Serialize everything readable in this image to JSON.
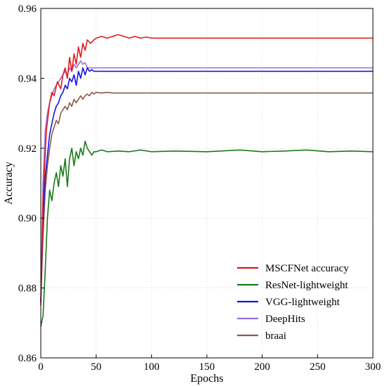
{
  "chart_data": {
    "type": "line",
    "title": "",
    "xlabel": "Epochs",
    "ylabel": "Accuracy",
    "xlim": [
      0,
      300
    ],
    "ylim": [
      0.86,
      0.96
    ],
    "xticks": [
      0,
      50,
      100,
      150,
      200,
      250,
      300
    ],
    "yticks": [
      0.86,
      0.88,
      0.9,
      0.92,
      0.94,
      0.96
    ],
    "ytick_labels": [
      "0.86",
      "0.88",
      "0.90",
      "0.92",
      "0.94",
      "0.96"
    ],
    "grid": true,
    "legend_position": "bottom-right",
    "series": [
      {
        "name": "MSCFNet accuracy",
        "color": "#e41a1c",
        "points": [
          [
            0,
            0.875
          ],
          [
            2,
            0.905
          ],
          [
            5,
            0.925
          ],
          [
            8,
            0.933
          ],
          [
            10,
            0.936
          ],
          [
            12,
            0.935
          ],
          [
            15,
            0.939
          ],
          [
            18,
            0.937
          ],
          [
            20,
            0.941
          ],
          [
            22,
            0.943
          ],
          [
            24,
            0.94
          ],
          [
            26,
            0.946
          ],
          [
            28,
            0.942
          ],
          [
            30,
            0.947
          ],
          [
            32,
            0.944
          ],
          [
            34,
            0.949
          ],
          [
            36,
            0.946
          ],
          [
            38,
            0.95
          ],
          [
            40,
            0.948
          ],
          [
            42,
            0.951
          ],
          [
            45,
            0.95
          ],
          [
            48,
            0.951
          ],
          [
            50,
            0.9515
          ],
          [
            55,
            0.952
          ],
          [
            60,
            0.9515
          ],
          [
            65,
            0.952
          ],
          [
            70,
            0.9525
          ],
          [
            75,
            0.952
          ],
          [
            80,
            0.9515
          ],
          [
            85,
            0.952
          ],
          [
            90,
            0.9515
          ],
          [
            95,
            0.9518
          ],
          [
            100,
            0.9515
          ],
          [
            110,
            0.9515
          ],
          [
            150,
            0.9515
          ],
          [
            200,
            0.9515
          ],
          [
            250,
            0.9515
          ],
          [
            300,
            0.9515
          ]
        ]
      },
      {
        "name": "ResNet-lightweight",
        "color": "#1a7a1a",
        "points": [
          [
            0,
            0.869
          ],
          [
            2,
            0.872
          ],
          [
            4,
            0.885
          ],
          [
            6,
            0.9
          ],
          [
            8,
            0.908
          ],
          [
            10,
            0.905
          ],
          [
            12,
            0.91
          ],
          [
            14,
            0.913
          ],
          [
            16,
            0.909
          ],
          [
            18,
            0.915
          ],
          [
            20,
            0.912
          ],
          [
            22,
            0.917
          ],
          [
            24,
            0.909
          ],
          [
            26,
            0.917
          ],
          [
            28,
            0.92
          ],
          [
            30,
            0.915
          ],
          [
            32,
            0.919
          ],
          [
            34,
            0.917
          ],
          [
            36,
            0.92
          ],
          [
            38,
            0.918
          ],
          [
            40,
            0.922
          ],
          [
            42,
            0.92
          ],
          [
            44,
            0.919
          ],
          [
            46,
            0.918
          ],
          [
            48,
            0.919
          ],
          [
            50,
            0.919
          ],
          [
            55,
            0.9195
          ],
          [
            60,
            0.919
          ],
          [
            70,
            0.9192
          ],
          [
            80,
            0.919
          ],
          [
            90,
            0.9195
          ],
          [
            100,
            0.919
          ],
          [
            120,
            0.9192
          ],
          [
            150,
            0.919
          ],
          [
            180,
            0.9195
          ],
          [
            200,
            0.919
          ],
          [
            220,
            0.9192
          ],
          [
            240,
            0.9195
          ],
          [
            260,
            0.919
          ],
          [
            280,
            0.9192
          ],
          [
            300,
            0.919
          ]
        ]
      },
      {
        "name": "VGG-lightweight",
        "color": "#1515e0",
        "points": [
          [
            0,
            0.876
          ],
          [
            2,
            0.9
          ],
          [
            4,
            0.912
          ],
          [
            6,
            0.918
          ],
          [
            8,
            0.924
          ],
          [
            10,
            0.927
          ],
          [
            12,
            0.93
          ],
          [
            14,
            0.932
          ],
          [
            16,
            0.933
          ],
          [
            18,
            0.935
          ],
          [
            20,
            0.936
          ],
          [
            22,
            0.938
          ],
          [
            24,
            0.937
          ],
          [
            26,
            0.94
          ],
          [
            28,
            0.939
          ],
          [
            30,
            0.941
          ],
          [
            32,
            0.938
          ],
          [
            34,
            0.942
          ],
          [
            36,
            0.94
          ],
          [
            38,
            0.943
          ],
          [
            40,
            0.941
          ],
          [
            42,
            0.943
          ],
          [
            44,
            0.942
          ],
          [
            46,
            0.9425
          ],
          [
            48,
            0.942
          ],
          [
            50,
            0.942
          ],
          [
            60,
            0.942
          ],
          [
            80,
            0.942
          ],
          [
            100,
            0.942
          ],
          [
            150,
            0.942
          ],
          [
            200,
            0.942
          ],
          [
            250,
            0.942
          ],
          [
            300,
            0.942
          ]
        ]
      },
      {
        "name": "DeepHits",
        "color": "#9a6fd6",
        "points": [
          [
            0,
            0.876
          ],
          [
            2,
            0.91
          ],
          [
            4,
            0.925
          ],
          [
            6,
            0.93
          ],
          [
            8,
            0.933
          ],
          [
            10,
            0.935
          ],
          [
            12,
            0.937
          ],
          [
            14,
            0.938
          ],
          [
            16,
            0.939
          ],
          [
            18,
            0.94
          ],
          [
            20,
            0.941
          ],
          [
            22,
            0.942
          ],
          [
            24,
            0.941
          ],
          [
            26,
            0.943
          ],
          [
            28,
            0.942
          ],
          [
            30,
            0.944
          ],
          [
            32,
            0.943
          ],
          [
            34,
            0.944
          ],
          [
            36,
            0.945
          ],
          [
            38,
            0.944
          ],
          [
            40,
            0.9445
          ],
          [
            42,
            0.943
          ],
          [
            44,
            0.943
          ],
          [
            46,
            0.943
          ],
          [
            50,
            0.943
          ],
          [
            60,
            0.943
          ],
          [
            80,
            0.943
          ],
          [
            100,
            0.943
          ],
          [
            150,
            0.943
          ],
          [
            200,
            0.943
          ],
          [
            250,
            0.943
          ],
          [
            300,
            0.943
          ]
        ]
      },
      {
        "name": "braai",
        "color": "#8b5a4a",
        "points": [
          [
            0,
            0.876
          ],
          [
            2,
            0.895
          ],
          [
            4,
            0.908
          ],
          [
            6,
            0.915
          ],
          [
            8,
            0.92
          ],
          [
            10,
            0.924
          ],
          [
            12,
            0.926
          ],
          [
            14,
            0.928
          ],
          [
            16,
            0.927
          ],
          [
            18,
            0.93
          ],
          [
            20,
            0.931
          ],
          [
            22,
            0.932
          ],
          [
            24,
            0.931
          ],
          [
            26,
            0.933
          ],
          [
            28,
            0.932
          ],
          [
            30,
            0.934
          ],
          [
            32,
            0.933
          ],
          [
            34,
            0.934
          ],
          [
            36,
            0.935
          ],
          [
            38,
            0.934
          ],
          [
            40,
            0.935
          ],
          [
            42,
            0.9355
          ],
          [
            44,
            0.935
          ],
          [
            46,
            0.936
          ],
          [
            48,
            0.9355
          ],
          [
            50,
            0.936
          ],
          [
            55,
            0.9358
          ],
          [
            60,
            0.936
          ],
          [
            65,
            0.9358
          ],
          [
            70,
            0.9358
          ],
          [
            80,
            0.9358
          ],
          [
            100,
            0.9358
          ],
          [
            150,
            0.9358
          ],
          [
            200,
            0.9358
          ],
          [
            250,
            0.9358
          ],
          [
            300,
            0.9358
          ]
        ]
      }
    ]
  }
}
